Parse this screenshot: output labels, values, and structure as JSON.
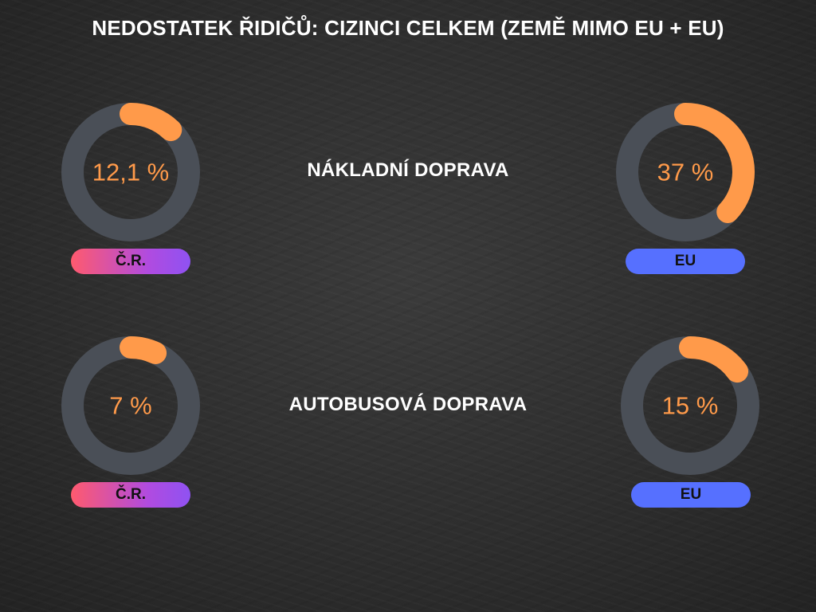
{
  "title": "NEDOSTATEK ŘIDIČŮ: CIZINCI CELKEM (ZEMĚ MIMO EU + EU)",
  "colors": {
    "ring_track": "#4a4f57",
    "ring_value": "#ff9a4a",
    "value_text": "#ff9a4a",
    "pill_eu": "#5670ff",
    "pill_cr_start": "#ff5a6e",
    "pill_cr_end": "#8f52f2",
    "label_text": "#ffffff"
  },
  "sections": [
    {
      "label": "NÁKLADNÍ DOPRAVA"
    },
    {
      "label": "AUTOBUSOVÁ DOPRAVA"
    }
  ],
  "chart_data": [
    {
      "type": "pie",
      "variant": "donut",
      "section": "NÁKLADNÍ DOPRAVA",
      "value": 12.1,
      "value_label": "12,1 %",
      "tag": "Č.R."
    },
    {
      "type": "pie",
      "variant": "donut",
      "section": "NÁKLADNÍ DOPRAVA",
      "value": 37,
      "value_label": "37 %",
      "tag": "EU"
    },
    {
      "type": "pie",
      "variant": "donut",
      "section": "AUTOBUSOVÁ DOPRAVA",
      "value": 7,
      "value_label": "7 %",
      "tag": "Č.R."
    },
    {
      "type": "pie",
      "variant": "donut",
      "section": "AUTOBUSOVÁ DOPRAVA",
      "value": 15,
      "value_label": "15 %",
      "tag": "EU"
    }
  ]
}
